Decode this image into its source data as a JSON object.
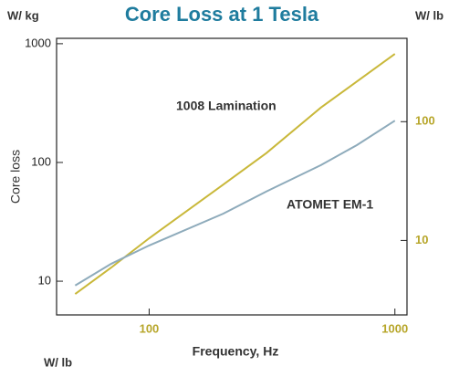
{
  "chart_data": {
    "type": "line",
    "title": "Core Loss at 1 Tesla",
    "y_unit_label": "W/ kg",
    "y2_unit_label": "W/ lb",
    "footnote": "W/ lb",
    "xlabel": "Frequency, Hz",
    "ylabel": "Core loss",
    "x": [
      50,
      70,
      100,
      200,
      300,
      500,
      700,
      1000
    ],
    "series": [
      {
        "name": "1008 Lamination",
        "color": "#c9b83a",
        "values": [
          7.8,
          13,
          23,
          65,
          120,
          290,
          480,
          820
        ]
      },
      {
        "name": "ATOMET EM-1",
        "color": "#8eabbb",
        "values": [
          9.2,
          14,
          20,
          37,
          57,
          95,
          140,
          225
        ]
      }
    ],
    "xscale": "log",
    "yscale": "log",
    "xlim": [
      42,
      1120
    ],
    "ylim": [
      5.2,
      1110
    ],
    "y2lim": [
      2.36,
      503
    ],
    "xticks": [
      100,
      1000
    ],
    "yticks": [
      10,
      100,
      1000
    ],
    "y2ticks": [
      10,
      100
    ],
    "tick_label_color": "#b7a62a",
    "title_color": "#1f7c9e"
  }
}
